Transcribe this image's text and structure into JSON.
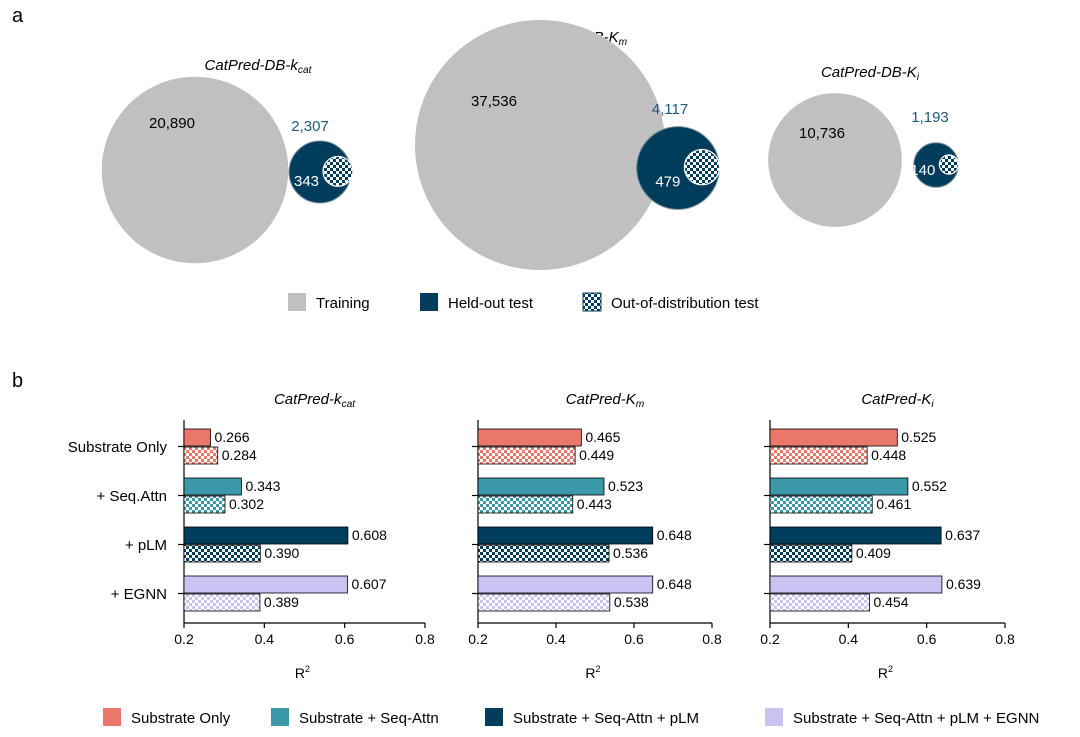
{
  "panel_a_letter": "a",
  "panel_b_letter": "b",
  "panel_a": {
    "datasets": [
      {
        "title_main": "CatPred-DB-k",
        "title_sub": "cat",
        "training": 20890,
        "training_label": "20,890",
        "heldout": 2307,
        "heldout_label": "2,307",
        "ood": 343,
        "ood_label": "343"
      },
      {
        "title_main": "CatPred-DB-K",
        "title_sub": "m",
        "training": 37536,
        "training_label": "37,536",
        "heldout": 4117,
        "heldout_label": "4,117",
        "ood": 479,
        "ood_label": "479"
      },
      {
        "title_main": "CatPred-DB-K",
        "title_sub": "i",
        "training": 10736,
        "training_label": "10,736",
        "heldout": 1193,
        "heldout_label": "1,193",
        "ood": 140,
        "ood_label": "140"
      }
    ],
    "legend": [
      {
        "label": "Training",
        "kind": "training"
      },
      {
        "label": "Held-out test",
        "kind": "heldout"
      },
      {
        "label": "Out-of-distribution test",
        "kind": "ood"
      }
    ]
  },
  "chart_data": {
    "type": "bar",
    "orientation": "horizontal",
    "categories": [
      "Substrate Only",
      "+ Seq.Attn",
      "+ pLM",
      "+ EGNN"
    ],
    "xlabel_main": "R",
    "xlabel_sup": "2",
    "xlim": [
      0.2,
      0.8
    ],
    "xticks": [
      "0.2",
      "0.4",
      "0.6",
      "0.8"
    ],
    "panels": [
      {
        "title_main": "CatPred-k",
        "title_sub": "cat",
        "heldout": [
          0.266,
          0.343,
          0.608,
          0.607
        ],
        "ood": [
          0.284,
          0.302,
          0.39,
          0.389
        ]
      },
      {
        "title_main": "CatPred-K",
        "title_sub": "m",
        "heldout": [
          0.465,
          0.523,
          0.648,
          0.648
        ],
        "ood": [
          0.449,
          0.443,
          0.536,
          0.538
        ]
      },
      {
        "title_main": "CatPred-K",
        "title_sub": "i",
        "heldout": [
          0.525,
          0.552,
          0.637,
          0.639
        ],
        "ood": [
          0.448,
          0.461,
          0.409,
          0.454
        ]
      }
    ],
    "value_labels": [
      {
        "heldout": [
          "0.266",
          "0.343",
          "0.608",
          "0.607"
        ],
        "ood": [
          "0.284",
          "0.302",
          "0.390",
          "0.389"
        ]
      },
      {
        "heldout": [
          "0.465",
          "0.523",
          "0.648",
          "0.648"
        ],
        "ood": [
          "0.449",
          "0.443",
          "0.536",
          "0.538"
        ]
      },
      {
        "heldout": [
          "0.525",
          "0.552",
          "0.637",
          "0.639"
        ],
        "ood": [
          "0.448",
          "0.461",
          "0.409",
          "0.454"
        ]
      }
    ],
    "series_colors": [
      "#E9776A",
      "#3A98A8",
      "#003D5C",
      "#C9C2F2"
    ],
    "legend": [
      {
        "label": "Substrate Only",
        "color": "#E9776A"
      },
      {
        "label": "Substrate + Seq-Attn",
        "color": "#3A98A8"
      },
      {
        "label": "Substrate + Seq-Attn + pLM",
        "color": "#003D5C"
      },
      {
        "label": "Substrate + Seq-Attn + pLM + EGNN",
        "color": "#C9C2F2"
      }
    ]
  },
  "colors": {
    "training": "#C0C0C0",
    "heldout": "#003D5C",
    "heldout_label": "#1F5A7A",
    "axis": "#000000"
  }
}
